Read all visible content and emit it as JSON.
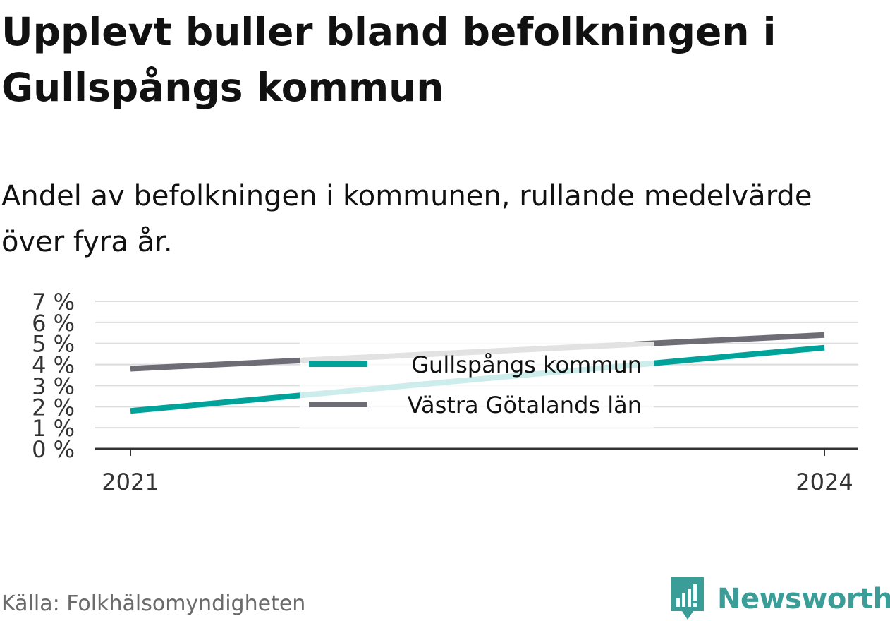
{
  "title": "Upplevt buller bland befolkningen i Gullspångs kommun",
  "subtitle": "Andel av befolkningen i kommunen, rullande medelvärde över fyra år.",
  "source": "Källa: Folkhälsomyndigheten",
  "brand": "Newsworthy",
  "colors": {
    "gullspang": "#00a39a",
    "vastra_gotaland": "#6e6d75",
    "brand": "#3a9d98"
  },
  "chart_data": {
    "type": "line",
    "x": [
      "2021",
      "2024"
    ],
    "ylim": [
      0,
      7
    ],
    "yticks": [
      "0 %",
      "1 %",
      "2 %",
      "3 %",
      "4 %",
      "5 %",
      "6 %",
      "7 %"
    ],
    "grid": true,
    "legend_position": "center",
    "series": [
      {
        "name": "Gullspångs kommun",
        "values": [
          1.8,
          4.8
        ],
        "color": "#00a39a"
      },
      {
        "name": "Västra Götalands län",
        "values": [
          3.8,
          5.4
        ],
        "color": "#6e6d75"
      }
    ]
  }
}
